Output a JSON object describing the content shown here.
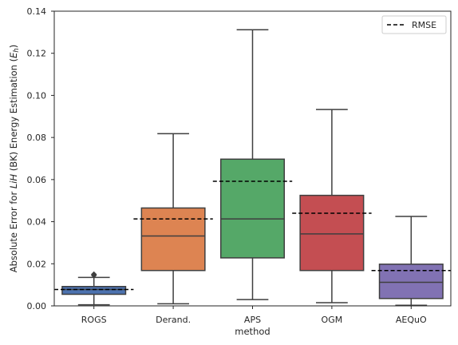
{
  "chart_data": {
    "type": "box",
    "xlabel": "method",
    "ylabel": {
      "prefix": "Absolute Error for ",
      "italic1": "LiH",
      "middle": " (BK) Energy Estimation (",
      "italic2": "E",
      "sub": "h",
      "suffix": ")"
    },
    "ylim": [
      0,
      0.14
    ],
    "yticks": [
      "0.00",
      "0.02",
      "0.04",
      "0.06",
      "0.08",
      "0.10",
      "0.12",
      "0.14"
    ],
    "grid": false,
    "legend": {
      "position": "top-right",
      "entries": [
        "RMSE"
      ]
    },
    "categories": [
      "ROGS",
      "Derand.",
      "APS",
      "OGM",
      "AEQuO"
    ],
    "boxes": [
      {
        "name": "ROGS",
        "color": "#4c72b0",
        "whisker_low": 0.0005,
        "q1": 0.0055,
        "median": 0.0078,
        "q3": 0.0092,
        "whisker_high": 0.0135,
        "outliers": [
          0.0145,
          0.015
        ],
        "rmse": 0.0078
      },
      {
        "name": "Derand.",
        "color": "#dd8452",
        "whisker_low": 0.001,
        "q1": 0.0168,
        "median": 0.0332,
        "q3": 0.0465,
        "whisker_high": 0.0818,
        "outliers": [],
        "rmse": 0.0413
      },
      {
        "name": "APS",
        "color": "#55a868",
        "whisker_low": 0.003,
        "q1": 0.0228,
        "median": 0.0413,
        "q3": 0.0697,
        "whisker_high": 0.1312,
        "outliers": [],
        "rmse": 0.0592
      },
      {
        "name": "OGM",
        "color": "#c44e52",
        "whisker_low": 0.0015,
        "q1": 0.0168,
        "median": 0.0342,
        "q3": 0.0525,
        "whisker_high": 0.0933,
        "outliers": [],
        "rmse": 0.044
      },
      {
        "name": "AEQuO",
        "color": "#8172b3",
        "whisker_low": 0.0003,
        "q1": 0.0035,
        "median": 0.0112,
        "q3": 0.0198,
        "whisker_high": 0.0425,
        "outliers": [],
        "rmse": 0.0168
      }
    ]
  }
}
